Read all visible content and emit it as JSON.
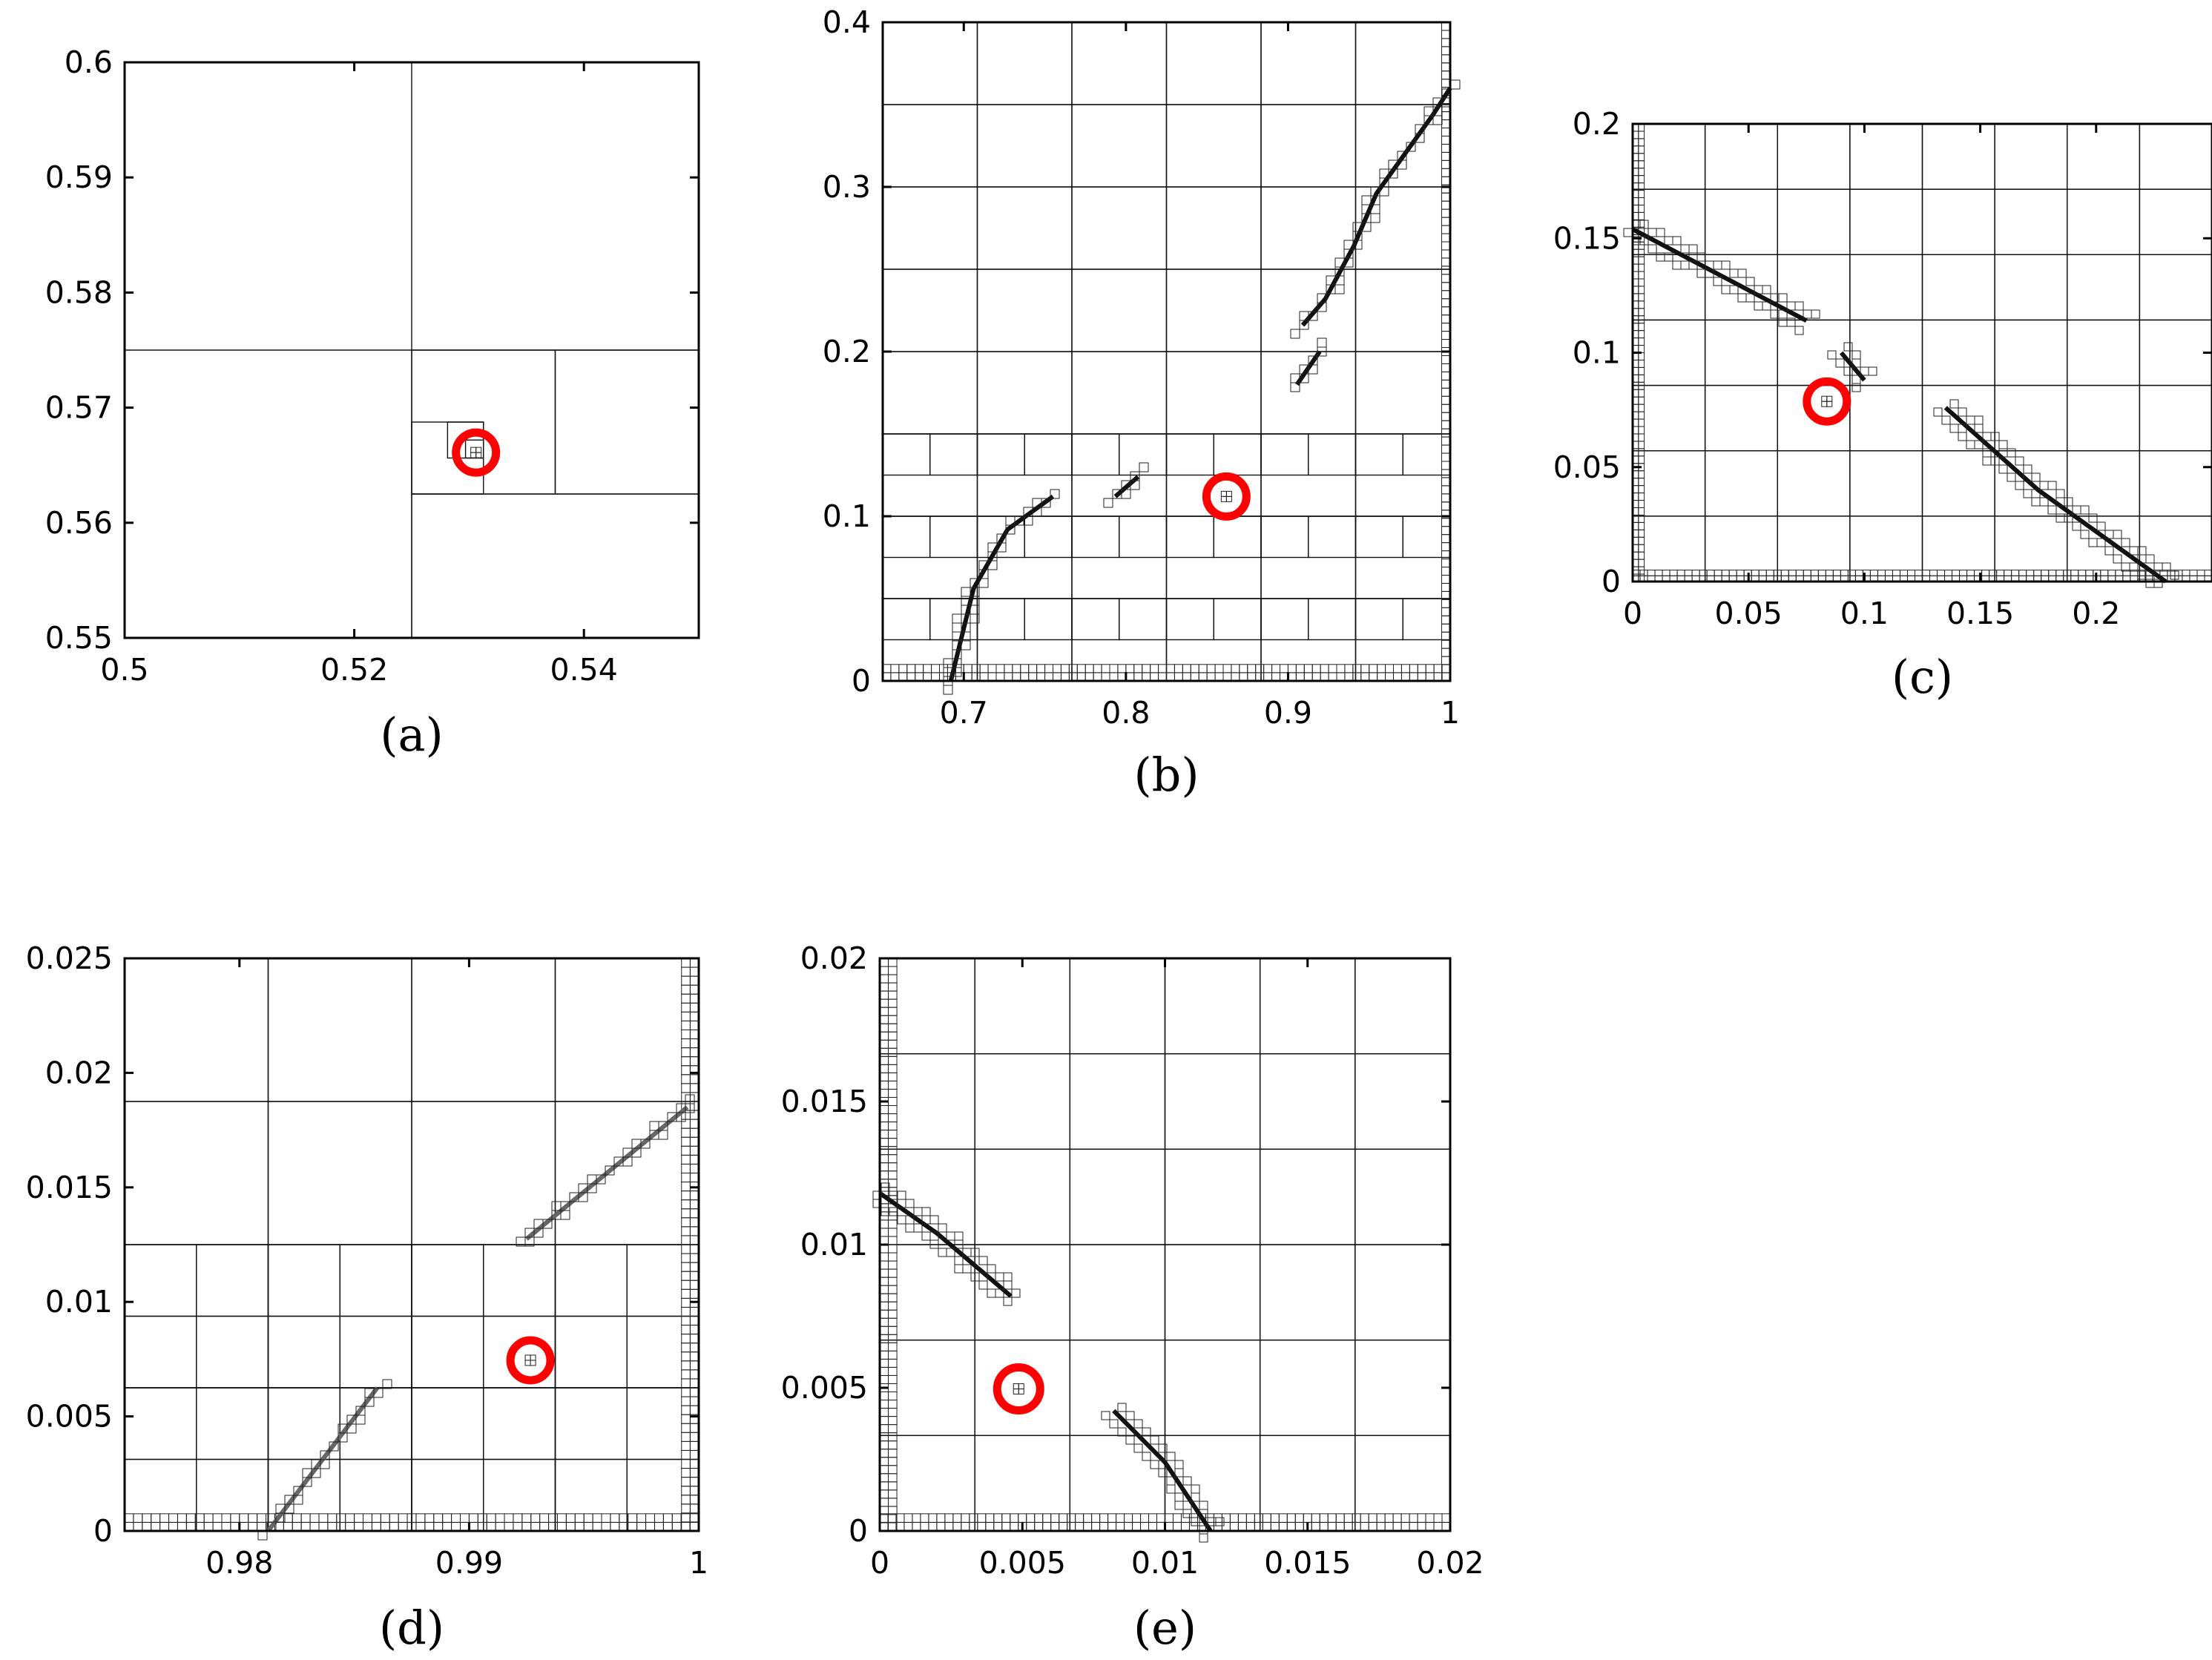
{
  "chart_data": [
    {
      "id": "a",
      "type": "scatter",
      "caption": "(a)",
      "xlim": [
        0.5,
        0.55
      ],
      "ylim": [
        0.55,
        0.6
      ],
      "xticks": [
        0.5,
        0.52,
        0.54
      ],
      "xtick_labels": [
        "0.5",
        "0.52",
        "0.54"
      ],
      "yticks": [
        0.55,
        0.56,
        0.57,
        0.58,
        0.59,
        0.6
      ],
      "ytick_labels": [
        "0.55",
        "0.56",
        "0.57",
        "0.58",
        "0.59",
        "0.6"
      ],
      "grid": false,
      "marker_color": "#ff0000",
      "highlight": {
        "x": 0.5306,
        "y": 0.5661
      }
    },
    {
      "id": "b",
      "type": "scatter",
      "caption": "(b)",
      "xlim": [
        0.65,
        1.0
      ],
      "ylim": [
        0.0,
        0.4
      ],
      "xticks": [
        0.7,
        0.8,
        0.9,
        1.0
      ],
      "xtick_labels": [
        "0.7",
        "0.8",
        "0.9",
        "1"
      ],
      "yticks": [
        0.0,
        0.1,
        0.2,
        0.3,
        0.4
      ],
      "ytick_labels": [
        "0",
        "0.1",
        "0.2",
        "0.3",
        "0.4"
      ],
      "grid": false,
      "marker_color": "#ff0000",
      "highlight": {
        "x": 0.862,
        "y": 0.112
      }
    },
    {
      "id": "c",
      "type": "scatter",
      "caption": "(c)",
      "xlim": [
        0.0,
        0.25
      ],
      "ylim": [
        0.0,
        0.2
      ],
      "xticks": [
        0.0,
        0.05,
        0.1,
        0.15,
        0.2
      ],
      "xtick_labels": [
        "0",
        "0.05",
        "0.1",
        "0.15",
        "0.2"
      ],
      "yticks": [
        0.0,
        0.05,
        0.1,
        0.15,
        0.2
      ],
      "ytick_labels": [
        "0",
        "0.05",
        "0.1",
        "0.15",
        "0.2"
      ],
      "grid": false,
      "marker_color": "#ff0000",
      "highlight": {
        "x": 0.0838,
        "y": 0.0787
      }
    },
    {
      "id": "d",
      "type": "scatter",
      "caption": "(d)",
      "xlim": [
        0.975,
        1.0
      ],
      "ylim": [
        0.0,
        0.025
      ],
      "xticks": [
        0.98,
        0.99,
        1.0
      ],
      "xtick_labels": [
        "0.98",
        "0.99",
        "1"
      ],
      "yticks": [
        0.0,
        0.005,
        0.01,
        0.015,
        0.02,
        0.025
      ],
      "ytick_labels": [
        "0",
        "0.005",
        "0.01",
        "0.015",
        "0.02",
        "0.025"
      ],
      "grid": false,
      "marker_color": "#ff0000",
      "highlight": {
        "x": 0.99267,
        "y": 0.00745
      }
    },
    {
      "id": "e",
      "type": "scatter",
      "caption": "(e)",
      "xlim": [
        0.0,
        0.02
      ],
      "ylim": [
        0.0,
        0.02
      ],
      "xticks": [
        0.0,
        0.005,
        0.01,
        0.015,
        0.02
      ],
      "xtick_labels": [
        "0",
        "0.005",
        "0.01",
        "0.015",
        "0.02"
      ],
      "yticks": [
        0.0,
        0.005,
        0.01,
        0.015,
        0.02
      ],
      "ytick_labels": [
        "0",
        "0.005",
        "0.01",
        "0.015",
        "0.02"
      ],
      "grid": false,
      "marker_color": "#ff0000",
      "highlight": {
        "x": 0.00487,
        "y": 0.00496
      }
    }
  ]
}
